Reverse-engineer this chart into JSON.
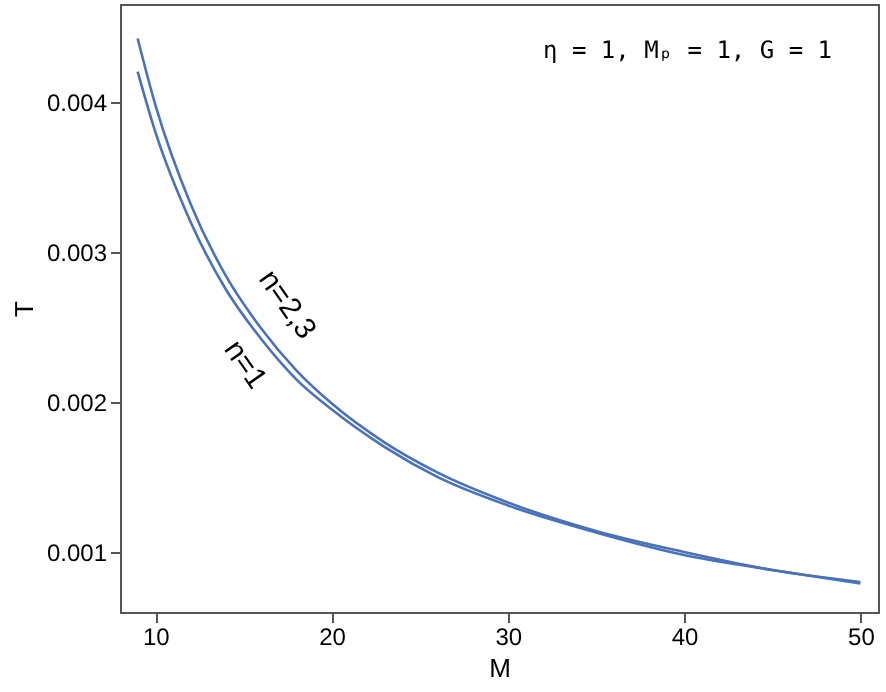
{
  "chart_data": {
    "type": "line",
    "xlabel": "M",
    "ylabel": "T",
    "xlim": [
      8,
      51
    ],
    "ylim": [
      0.0006,
      0.00465
    ],
    "xticks": [
      10,
      20,
      30,
      40,
      50
    ],
    "yticks": [
      {
        "value": 0.001,
        "label": "0.001"
      },
      {
        "value": 0.002,
        "label": "0.002"
      },
      {
        "value": 0.003,
        "label": "0.003"
      },
      {
        "value": 0.004,
        "label": "0.004"
      }
    ],
    "x": [
      9,
      10,
      12,
      14,
      16,
      18,
      20,
      23,
      26,
      30,
      35,
      40,
      45,
      50
    ],
    "series": [
      {
        "color": "#4a72b8",
        "values": [
          0.00442,
          0.00398,
          0.00332,
          0.00284,
          0.00249,
          0.00221,
          0.00199,
          0.00173,
          0.00153,
          0.00133,
          0.00114,
          0.001,
          0.00088,
          0.0008
        ]
      },
      {
        "color": "#4a72b8",
        "values": [
          0.0042,
          0.0038,
          0.0032,
          0.00275,
          0.00242,
          0.00215,
          0.00195,
          0.0017,
          0.0015,
          0.00131,
          0.00113,
          0.00098,
          0.00088,
          0.00079
        ]
      }
    ],
    "annotations": [
      "n=2,3",
      "n=1",
      "η = 1, Mₚ = 1, G = 1"
    ],
    "grid": false,
    "marker": "none",
    "line_style": "solid"
  }
}
